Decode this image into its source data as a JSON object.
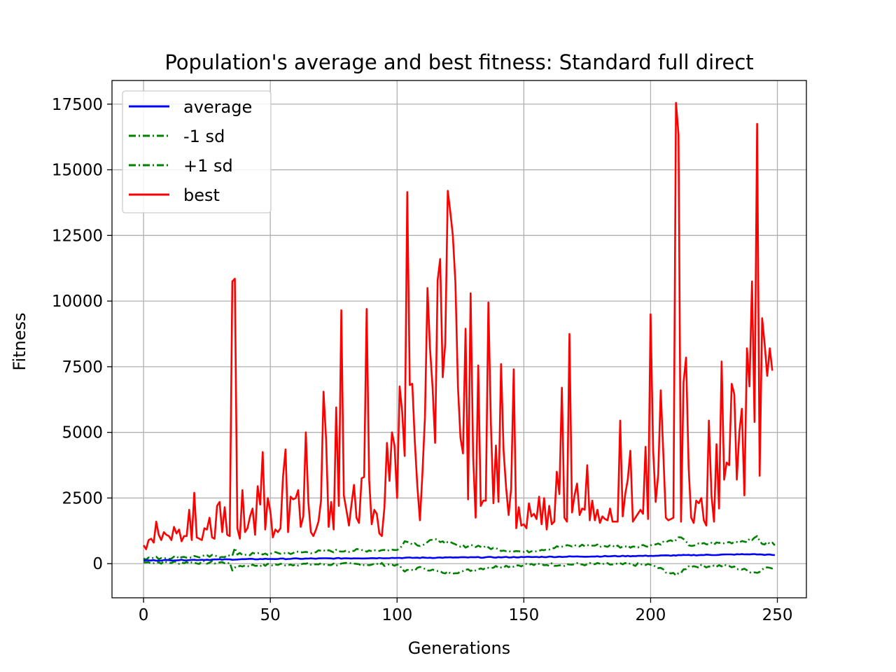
{
  "chart_data": {
    "type": "line",
    "title": "Population's average and best fitness: Standard full direct",
    "xlabel": "Generations",
    "ylabel": "Fitness",
    "xlim": [
      -12.45,
      261.45
    ],
    "ylim": [
      -1300,
      18400
    ],
    "xticks": [
      0,
      50,
      100,
      150,
      200,
      250
    ],
    "yticks": [
      0,
      2500,
      5000,
      7500,
      10000,
      12500,
      15000,
      17500
    ],
    "grid": true,
    "legend_position": "top-left",
    "colors": {
      "average": "#0000ff",
      "sd": "#008000",
      "best": "#ff0000"
    },
    "x_count": 250,
    "series": [
      {
        "name": "average",
        "color": "#0000ff",
        "style": "solid",
        "points": [
          [
            0,
            120
          ],
          [
            50,
            180
          ],
          [
            100,
            220
          ],
          [
            150,
            250
          ],
          [
            200,
            300
          ],
          [
            240,
            360
          ],
          [
            249,
            330
          ]
        ]
      },
      {
        "name": "-1 sd",
        "color": "#008000",
        "style": "dashdot",
        "points": [
          [
            0,
            50
          ],
          [
            34,
            40
          ],
          [
            35,
            -260
          ],
          [
            38,
            -80
          ],
          [
            60,
            -20
          ],
          [
            100,
            -30
          ],
          [
            103,
            -300
          ],
          [
            110,
            -150
          ],
          [
            118,
            -350
          ],
          [
            125,
            -300
          ],
          [
            135,
            -150
          ],
          [
            150,
            -40
          ],
          [
            175,
            -20
          ],
          [
            200,
            -40
          ],
          [
            210,
            -450
          ],
          [
            215,
            -100
          ],
          [
            230,
            -80
          ],
          [
            242,
            -350
          ],
          [
            245,
            -150
          ],
          [
            249,
            -120
          ]
        ]
      },
      {
        "name": "+1 sd",
        "color": "#008000",
        "style": "dashdot",
        "points": [
          [
            0,
            200
          ],
          [
            15,
            250
          ],
          [
            35,
            300
          ],
          [
            36,
            600
          ],
          [
            37,
            350
          ],
          [
            50,
            380
          ],
          [
            80,
            500
          ],
          [
            100,
            520
          ],
          [
            103,
            850
          ],
          [
            110,
            700
          ],
          [
            113,
            900
          ],
          [
            118,
            850
          ],
          [
            125,
            650
          ],
          [
            130,
            700
          ],
          [
            140,
            550
          ],
          [
            150,
            450
          ],
          [
            165,
            650
          ],
          [
            175,
            700
          ],
          [
            190,
            650
          ],
          [
            200,
            700
          ],
          [
            210,
            900
          ],
          [
            212,
            1000
          ],
          [
            215,
            700
          ],
          [
            230,
            800
          ],
          [
            240,
            900
          ],
          [
            242,
            1050
          ],
          [
            244,
            750
          ],
          [
            248,
            800
          ],
          [
            249,
            700
          ]
        ]
      },
      {
        "name": "best",
        "color": "#ff0000",
        "style": "solid",
        "points": [
          [
            0,
            700
          ],
          [
            1,
            550
          ],
          [
            2,
            900
          ],
          [
            3,
            950
          ],
          [
            4,
            800
          ],
          [
            5,
            1600
          ],
          [
            6,
            1100
          ],
          [
            7,
            900
          ],
          [
            8,
            1200
          ],
          [
            9,
            1100
          ],
          [
            10,
            1050
          ],
          [
            11,
            900
          ],
          [
            12,
            1400
          ],
          [
            13,
            1150
          ],
          [
            14,
            1300
          ],
          [
            15,
            850
          ],
          [
            16,
            1050
          ],
          [
            17,
            1050
          ],
          [
            18,
            2050
          ],
          [
            19,
            900
          ],
          [
            20,
            2700
          ],
          [
            21,
            1000
          ],
          [
            22,
            950
          ],
          [
            23,
            900
          ],
          [
            24,
            1350
          ],
          [
            25,
            1300
          ],
          [
            26,
            1750
          ],
          [
            27,
            1000
          ],
          [
            28,
            950
          ],
          [
            29,
            2200
          ],
          [
            30,
            2350
          ],
          [
            31,
            1200
          ],
          [
            32,
            2150
          ],
          [
            33,
            1100
          ],
          [
            34,
            1050
          ],
          [
            35,
            10750
          ],
          [
            36,
            10850
          ],
          [
            37,
            1350
          ],
          [
            38,
            950
          ],
          [
            39,
            2800
          ],
          [
            40,
            1200
          ],
          [
            41,
            1350
          ],
          [
            42,
            1800
          ],
          [
            43,
            2100
          ],
          [
            44,
            1100
          ],
          [
            45,
            2950
          ],
          [
            46,
            2250
          ],
          [
            47,
            4250
          ],
          [
            48,
            1300
          ],
          [
            49,
            2500
          ],
          [
            50,
            2000
          ],
          [
            51,
            1000
          ],
          [
            52,
            1300
          ],
          [
            53,
            1200
          ],
          [
            54,
            1350
          ],
          [
            55,
            3300
          ],
          [
            56,
            4350
          ],
          [
            57,
            1200
          ],
          [
            58,
            2550
          ],
          [
            59,
            2450
          ],
          [
            60,
            2500
          ],
          [
            61,
            2800
          ],
          [
            62,
            1400
          ],
          [
            63,
            1800
          ],
          [
            64,
            5000
          ],
          [
            65,
            2350
          ],
          [
            66,
            1200
          ],
          [
            67,
            1050
          ],
          [
            68,
            1300
          ],
          [
            69,
            1600
          ],
          [
            70,
            2400
          ],
          [
            71,
            6550
          ],
          [
            72,
            4700
          ],
          [
            73,
            1400
          ],
          [
            74,
            2350
          ],
          [
            75,
            1300
          ],
          [
            76,
            5950
          ],
          [
            77,
            2200
          ],
          [
            78,
            9650
          ],
          [
            79,
            2600
          ],
          [
            80,
            2050
          ],
          [
            81,
            1450
          ],
          [
            82,
            2250
          ],
          [
            83,
            3000
          ],
          [
            84,
            1750
          ],
          [
            85,
            1550
          ],
          [
            86,
            3250
          ],
          [
            87,
            3300
          ],
          [
            88,
            9700
          ],
          [
            89,
            3200
          ],
          [
            90,
            1500
          ],
          [
            91,
            2050
          ],
          [
            92,
            1900
          ],
          [
            93,
            1150
          ],
          [
            94,
            1050
          ],
          [
            95,
            2150
          ],
          [
            96,
            4600
          ],
          [
            97,
            3150
          ],
          [
            98,
            5000
          ],
          [
            99,
            4500
          ],
          [
            100,
            2500
          ],
          [
            101,
            6750
          ],
          [
            102,
            5800
          ],
          [
            103,
            4100
          ],
          [
            104,
            14150
          ],
          [
            105,
            6800
          ],
          [
            106,
            6850
          ],
          [
            107,
            4650
          ],
          [
            108,
            2950
          ],
          [
            109,
            1650
          ],
          [
            110,
            3450
          ],
          [
            111,
            5600
          ],
          [
            112,
            10500
          ],
          [
            113,
            8200
          ],
          [
            114,
            6700
          ],
          [
            115,
            4600
          ],
          [
            116,
            10800
          ],
          [
            117,
            11600
          ],
          [
            118,
            7100
          ],
          [
            119,
            8400
          ],
          [
            120,
            14200
          ],
          [
            121,
            13400
          ],
          [
            122,
            12500
          ],
          [
            123,
            10700
          ],
          [
            124,
            6750
          ],
          [
            125,
            4800
          ],
          [
            126,
            4200
          ],
          [
            127,
            8950
          ],
          [
            128,
            2450
          ],
          [
            129,
            10300
          ],
          [
            130,
            4100
          ],
          [
            131,
            1750
          ],
          [
            132,
            7550
          ],
          [
            133,
            2200
          ],
          [
            134,
            2400
          ],
          [
            135,
            2400
          ],
          [
            136,
            9950
          ],
          [
            137,
            5300
          ],
          [
            138,
            2300
          ],
          [
            139,
            4500
          ],
          [
            140,
            2350
          ],
          [
            141,
            7600
          ],
          [
            142,
            4300
          ],
          [
            143,
            2900
          ],
          [
            144,
            1850
          ],
          [
            145,
            2850
          ],
          [
            146,
            7400
          ],
          [
            147,
            1350
          ],
          [
            148,
            2150
          ],
          [
            149,
            1450
          ],
          [
            150,
            1500
          ],
          [
            151,
            1350
          ],
          [
            152,
            2300
          ],
          [
            153,
            1800
          ],
          [
            154,
            1900
          ],
          [
            155,
            1700
          ],
          [
            156,
            2550
          ],
          [
            157,
            1500
          ],
          [
            158,
            2500
          ],
          [
            159,
            1300
          ],
          [
            160,
            2200
          ],
          [
            161,
            1500
          ],
          [
            162,
            1600
          ],
          [
            163,
            3500
          ],
          [
            164,
            2650
          ],
          [
            165,
            6700
          ],
          [
            166,
            1750
          ],
          [
            167,
            1600
          ],
          [
            168,
            8750
          ],
          [
            169,
            1950
          ],
          [
            170,
            2600
          ],
          [
            171,
            3050
          ],
          [
            172,
            1850
          ],
          [
            173,
            2100
          ],
          [
            174,
            2050
          ],
          [
            175,
            3750
          ],
          [
            176,
            1650
          ],
          [
            177,
            2400
          ],
          [
            178,
            1650
          ],
          [
            179,
            2050
          ],
          [
            180,
            1550
          ],
          [
            181,
            1800
          ],
          [
            182,
            1700
          ],
          [
            183,
            1650
          ],
          [
            184,
            2100
          ],
          [
            185,
            1600
          ],
          [
            186,
            1600
          ],
          [
            187,
            1600
          ],
          [
            188,
            5450
          ],
          [
            189,
            1800
          ],
          [
            190,
            2650
          ],
          [
            191,
            3200
          ],
          [
            192,
            4300
          ],
          [
            193,
            1600
          ],
          [
            194,
            1750
          ],
          [
            195,
            1900
          ],
          [
            196,
            2050
          ],
          [
            197,
            1900
          ],
          [
            198,
            4450
          ],
          [
            199,
            1700
          ],
          [
            200,
            9500
          ],
          [
            201,
            4300
          ],
          [
            202,
            2350
          ],
          [
            203,
            3400
          ],
          [
            204,
            6600
          ],
          [
            205,
            4200
          ],
          [
            206,
            1750
          ],
          [
            207,
            1650
          ],
          [
            208,
            1700
          ],
          [
            209,
            1750
          ],
          [
            210,
            17550
          ],
          [
            211,
            16350
          ],
          [
            212,
            1600
          ],
          [
            213,
            6900
          ],
          [
            214,
            7850
          ],
          [
            215,
            3650
          ],
          [
            216,
            1750
          ],
          [
            217,
            1550
          ],
          [
            218,
            2400
          ],
          [
            219,
            2300
          ],
          [
            220,
            2500
          ],
          [
            221,
            1650
          ],
          [
            222,
            1450
          ],
          [
            223,
            5450
          ],
          [
            224,
            2600
          ],
          [
            225,
            1600
          ],
          [
            226,
            4550
          ],
          [
            227,
            2100
          ],
          [
            228,
            7700
          ],
          [
            229,
            3200
          ],
          [
            230,
            3850
          ],
          [
            231,
            3750
          ],
          [
            232,
            6850
          ],
          [
            233,
            6450
          ],
          [
            234,
            3200
          ],
          [
            235,
            5000
          ],
          [
            236,
            5900
          ],
          [
            237,
            2600
          ],
          [
            238,
            8200
          ],
          [
            239,
            6750
          ],
          [
            240,
            10750
          ],
          [
            241,
            5400
          ],
          [
            242,
            16750
          ],
          [
            243,
            3350
          ],
          [
            244,
            9350
          ],
          [
            245,
            8350
          ],
          [
            246,
            7150
          ],
          [
            247,
            8200
          ],
          [
            248,
            7350
          ]
        ]
      }
    ]
  }
}
